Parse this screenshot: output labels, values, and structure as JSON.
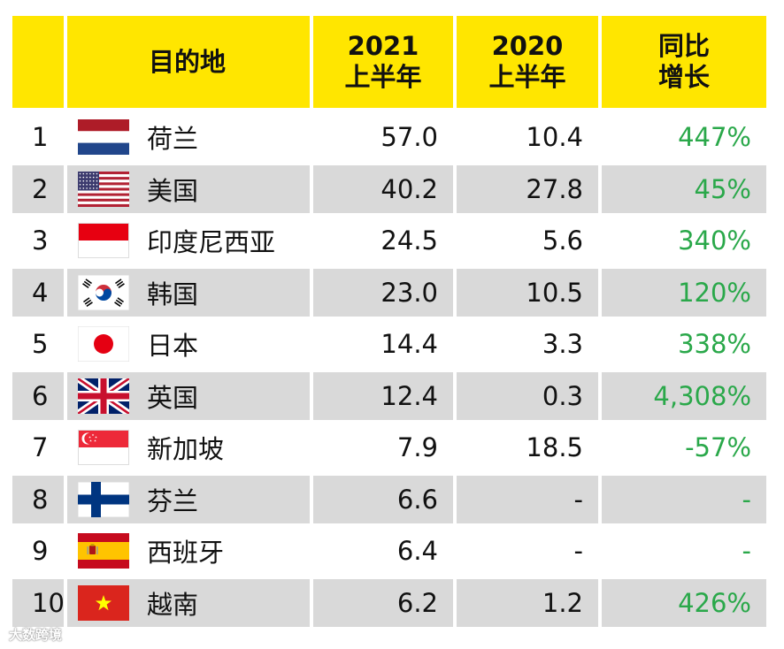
{
  "chart_data": {
    "type": "table",
    "columns": [
      {
        "line1": "目的地",
        "line2": ""
      },
      {
        "line1": "2021",
        "line2": "上半年"
      },
      {
        "line1": "2020",
        "line2": "上半年"
      },
      {
        "line1": "同比",
        "line2": "增长"
      }
    ],
    "rows": [
      {
        "rank": "1",
        "flag": "netherlands-flag-icon",
        "name": "荷兰",
        "y2021": "57.0",
        "y2020": "10.4",
        "growth": "447%"
      },
      {
        "rank": "2",
        "flag": "usa-flag-icon",
        "name": "美国",
        "y2021": "40.2",
        "y2020": "27.8",
        "growth": "45%"
      },
      {
        "rank": "3",
        "flag": "indonesia-flag-icon",
        "name": "印度尼西亚",
        "y2021": "24.5",
        "y2020": "5.6",
        "growth": "340%"
      },
      {
        "rank": "4",
        "flag": "korea-flag-icon",
        "name": "韩国",
        "y2021": "23.0",
        "y2020": "10.5",
        "growth": "120%"
      },
      {
        "rank": "5",
        "flag": "japan-flag-icon",
        "name": "日本",
        "y2021": "14.4",
        "y2020": "3.3",
        "growth": "338%"
      },
      {
        "rank": "6",
        "flag": "uk-flag-icon",
        "name": "英国",
        "y2021": "12.4",
        "y2020": "0.3",
        "growth": "4,308%"
      },
      {
        "rank": "7",
        "flag": "singapore-flag-icon",
        "name": "新加坡",
        "y2021": "7.9",
        "y2020": "18.5",
        "growth": "-57%"
      },
      {
        "rank": "8",
        "flag": "finland-flag-icon",
        "name": "芬兰",
        "y2021": "6.6",
        "y2020": "-",
        "growth": "-"
      },
      {
        "rank": "9",
        "flag": "spain-flag-icon",
        "name": "西班牙",
        "y2021": "6.4",
        "y2020": "-",
        "growth": "-"
      },
      {
        "rank": "10",
        "flag": "vietnam-flag-icon",
        "name": "越南",
        "y2021": "6.2",
        "y2020": "1.2",
        "growth": "426%"
      }
    ]
  },
  "colors": {
    "header_bg": "#ffe600",
    "shade_bg": "#d9d9d9",
    "growth_text": "#2aa84a",
    "text": "#111111"
  },
  "watermark": "大数跨境"
}
